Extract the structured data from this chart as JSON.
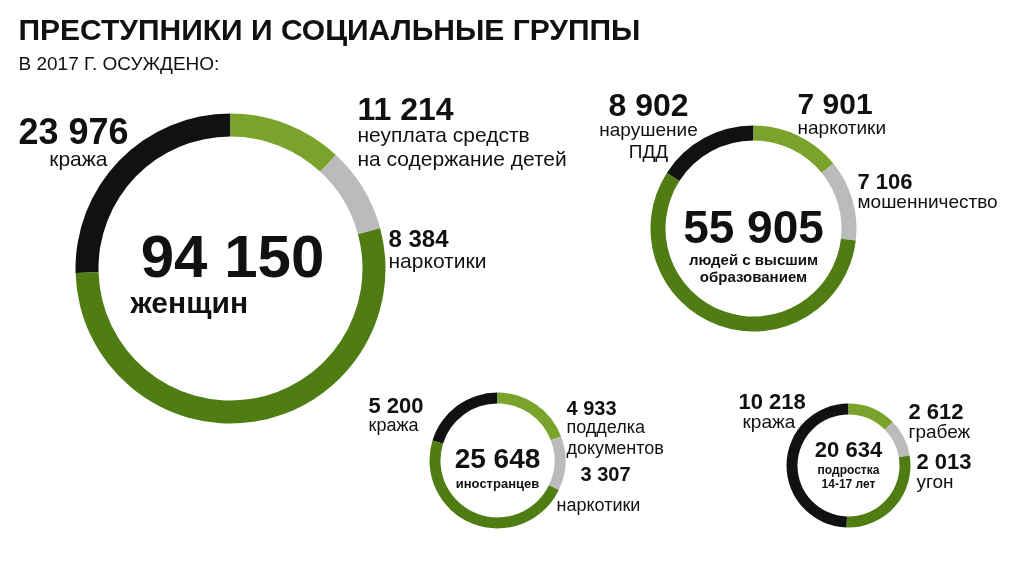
{
  "chart_data": [
    {
      "type": "donut",
      "title": "ПРЕСТУПНИКИ И СОЦИАЛЬНЫЕ ГРУППЫ",
      "subtitle": "В 2017 Г. ОСУЖДЕНО:",
      "categories": [
        "кража",
        "неуплата средств\nна содержание детей",
        "наркотики",
        null
      ],
      "values": [
        23976,
        11214,
        8384,
        50576
      ],
      "value_labels": [
        "23 976",
        "11 214",
        "8 384",
        null
      ],
      "colors": [
        "#111111",
        "#79a32a",
        "#bbbbbb",
        "#4f7d14"
      ],
      "annotations": [
        "94 150",
        "женщин"
      ]
    },
    {
      "type": "donut",
      "categories": [
        "нарушение\nПДД",
        "наркотики",
        "мошенничество",
        null
      ],
      "values": [
        8902,
        7901,
        7106,
        31996
      ],
      "value_labels": [
        "8 902",
        "7 901",
        "7 106",
        null
      ],
      "colors": [
        "#111111",
        "#79a32a",
        "#bbbbbb",
        "#4f7d14"
      ],
      "annotations": [
        "55 905",
        "людей с высшим\nобразованием"
      ]
    },
    {
      "type": "donut",
      "categories": [
        "кража",
        "подделка\nдокументов",
        "наркотики",
        null
      ],
      "values": [
        5200,
        4933,
        3307,
        12208
      ],
      "value_labels": [
        "5 200",
        "4 933",
        "3 307",
        null
      ],
      "colors": [
        "#111111",
        "#79a32a",
        "#bbbbbb",
        "#4f7d14"
      ],
      "annotations": [
        "25 648",
        "иностранцев"
      ]
    },
    {
      "type": "donut",
      "categories": [
        "кража",
        "грабеж",
        "угон",
        null
      ],
      "values": [
        10218,
        2612,
        2013,
        5791
      ],
      "value_labels": [
        "10 218",
        "2 612",
        "2 013",
        null
      ],
      "colors": [
        "#111111",
        "#79a32a",
        "#bbbbbb",
        "#4f7d14"
      ],
      "annotations": [
        "20 634",
        "подростка\n14-17 лет"
      ]
    }
  ]
}
